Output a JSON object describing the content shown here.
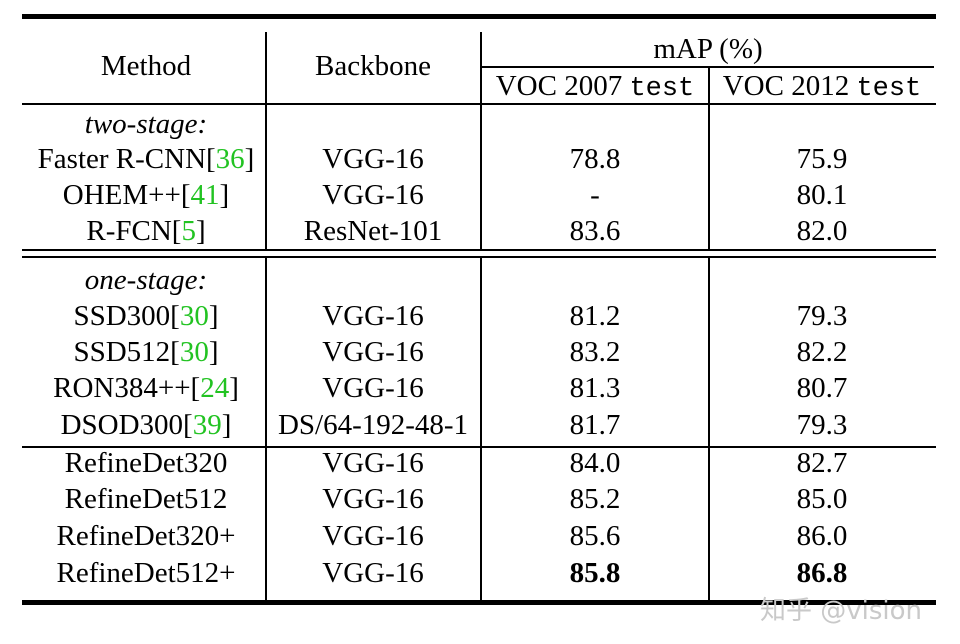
{
  "headers": {
    "method": "Method",
    "backbone": "Backbone",
    "map": "mAP (%)",
    "voc07": "VOC 2007",
    "voc12": "VOC 2012",
    "split": "test"
  },
  "sections": {
    "two_stage": "two-stage:",
    "one_stage": "one-stage:"
  },
  "rows": [
    {
      "method": "Faster R-CNN[",
      "cite": "36",
      "close": "]",
      "backbone": "VGG-16",
      "voc07": "78.8",
      "voc12": "75.9"
    },
    {
      "method": "OHEM++[",
      "cite": "41",
      "close": "]",
      "backbone": "VGG-16",
      "voc07": "-",
      "voc12": "80.1"
    },
    {
      "method": "R-FCN[",
      "cite": "5",
      "close": "]",
      "backbone": "ResNet-101",
      "voc07": "83.6",
      "voc12": "82.0"
    },
    {
      "method": "SSD300[",
      "cite": "30",
      "close": "]",
      "backbone": "VGG-16",
      "voc07": "81.2",
      "voc12": "79.3"
    },
    {
      "method": "SSD512[",
      "cite": "30",
      "close": "]",
      "backbone": "VGG-16",
      "voc07": "83.2",
      "voc12": "82.2"
    },
    {
      "method": "RON384++[",
      "cite": "24",
      "close": "]",
      "backbone": "VGG-16",
      "voc07": "81.3",
      "voc12": "80.7"
    },
    {
      "method": "DSOD300[",
      "cite": "39",
      "close": "]",
      "backbone": "DS/64-192-48-1",
      "voc07": "81.7",
      "voc12": "79.3"
    },
    {
      "method": "RefineDet320",
      "backbone": "VGG-16",
      "voc07": "84.0",
      "voc12": "82.7"
    },
    {
      "method": "RefineDet512",
      "backbone": "VGG-16",
      "voc07": "85.2",
      "voc12": "85.0"
    },
    {
      "method": "RefineDet320+",
      "backbone": "VGG-16",
      "voc07": "85.6",
      "voc12": "86.0"
    },
    {
      "method": "RefineDet512+",
      "backbone": "VGG-16",
      "voc07": "85.8",
      "voc12": "86.8"
    }
  ],
  "watermark": "知乎 @vision",
  "colors": {
    "citation": "#22c322",
    "watermark": "#c9c9c9"
  }
}
